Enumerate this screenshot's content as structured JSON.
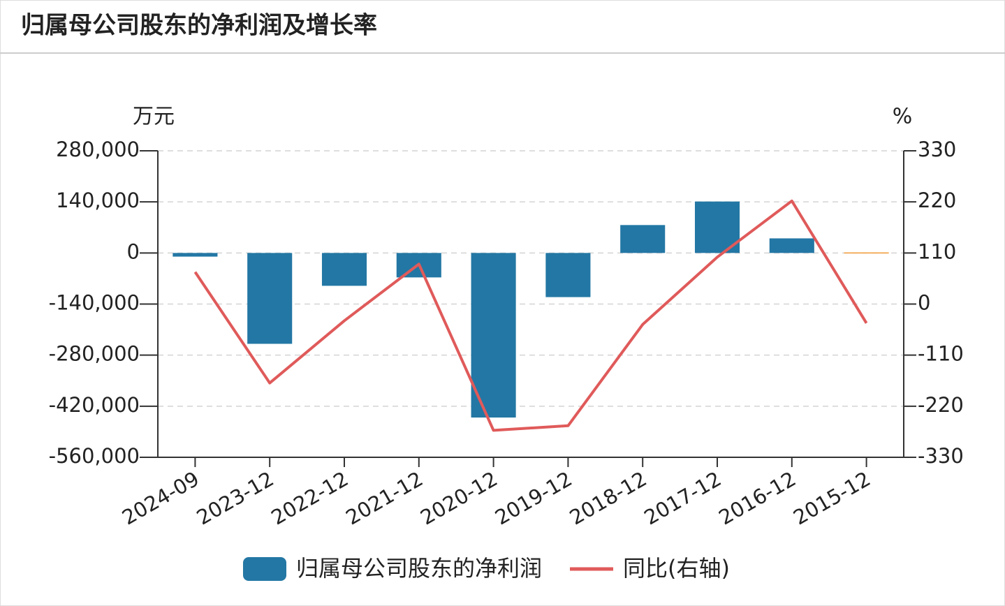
{
  "chart_data": {
    "type": "bar-line",
    "title": "归属母公司股东的净利润及增长率",
    "y_label": "万元",
    "y2_label": "%",
    "categories": [
      "2024-09",
      "2023-12",
      "2022-12",
      "2021-12",
      "2020-12",
      "2019-12",
      "2018-12",
      "2017-12",
      "2016-12",
      "2015-12"
    ],
    "series": [
      {
        "name": "归属母公司股东的净利润",
        "type": "bar",
        "color": "#2377a4",
        "colors": [
          "#2377a4",
          "#2377a4",
          "#2377a4",
          "#2377a4",
          "#2377a4",
          "#2377a4",
          "#2377a4",
          "#2377a4",
          "#2377a4",
          "#f29b38"
        ],
        "values": [
          -10000,
          -249000,
          -90000,
          -67000,
          -451000,
          -121000,
          76500,
          141000,
          40000,
          1500
        ]
      },
      {
        "name": "同比(右轴)",
        "type": "line",
        "axis": "y2",
        "color": "#e05a5a",
        "values": [
          69,
          -170,
          -36,
          86,
          -272,
          -262,
          -44,
          101,
          222,
          -41
        ]
      }
    ],
    "ylim": [
      -560000,
      280000
    ],
    "yticks": [
      {
        "value": 280000,
        "label": "280,000"
      },
      {
        "value": 140000,
        "label": "140,000"
      },
      0,
      {
        "value": -140000,
        "label": "-140,000"
      },
      {
        "value": -280000,
        "label": "-280,000"
      },
      {
        "value": -420000,
        "label": "-420,000"
      },
      {
        "value": -560000,
        "label": "-560,000"
      }
    ],
    "y2lim": [
      -330,
      330
    ],
    "y2ticks": [
      330,
      220,
      110,
      0,
      -110,
      -220,
      -330
    ],
    "grid": true
  }
}
